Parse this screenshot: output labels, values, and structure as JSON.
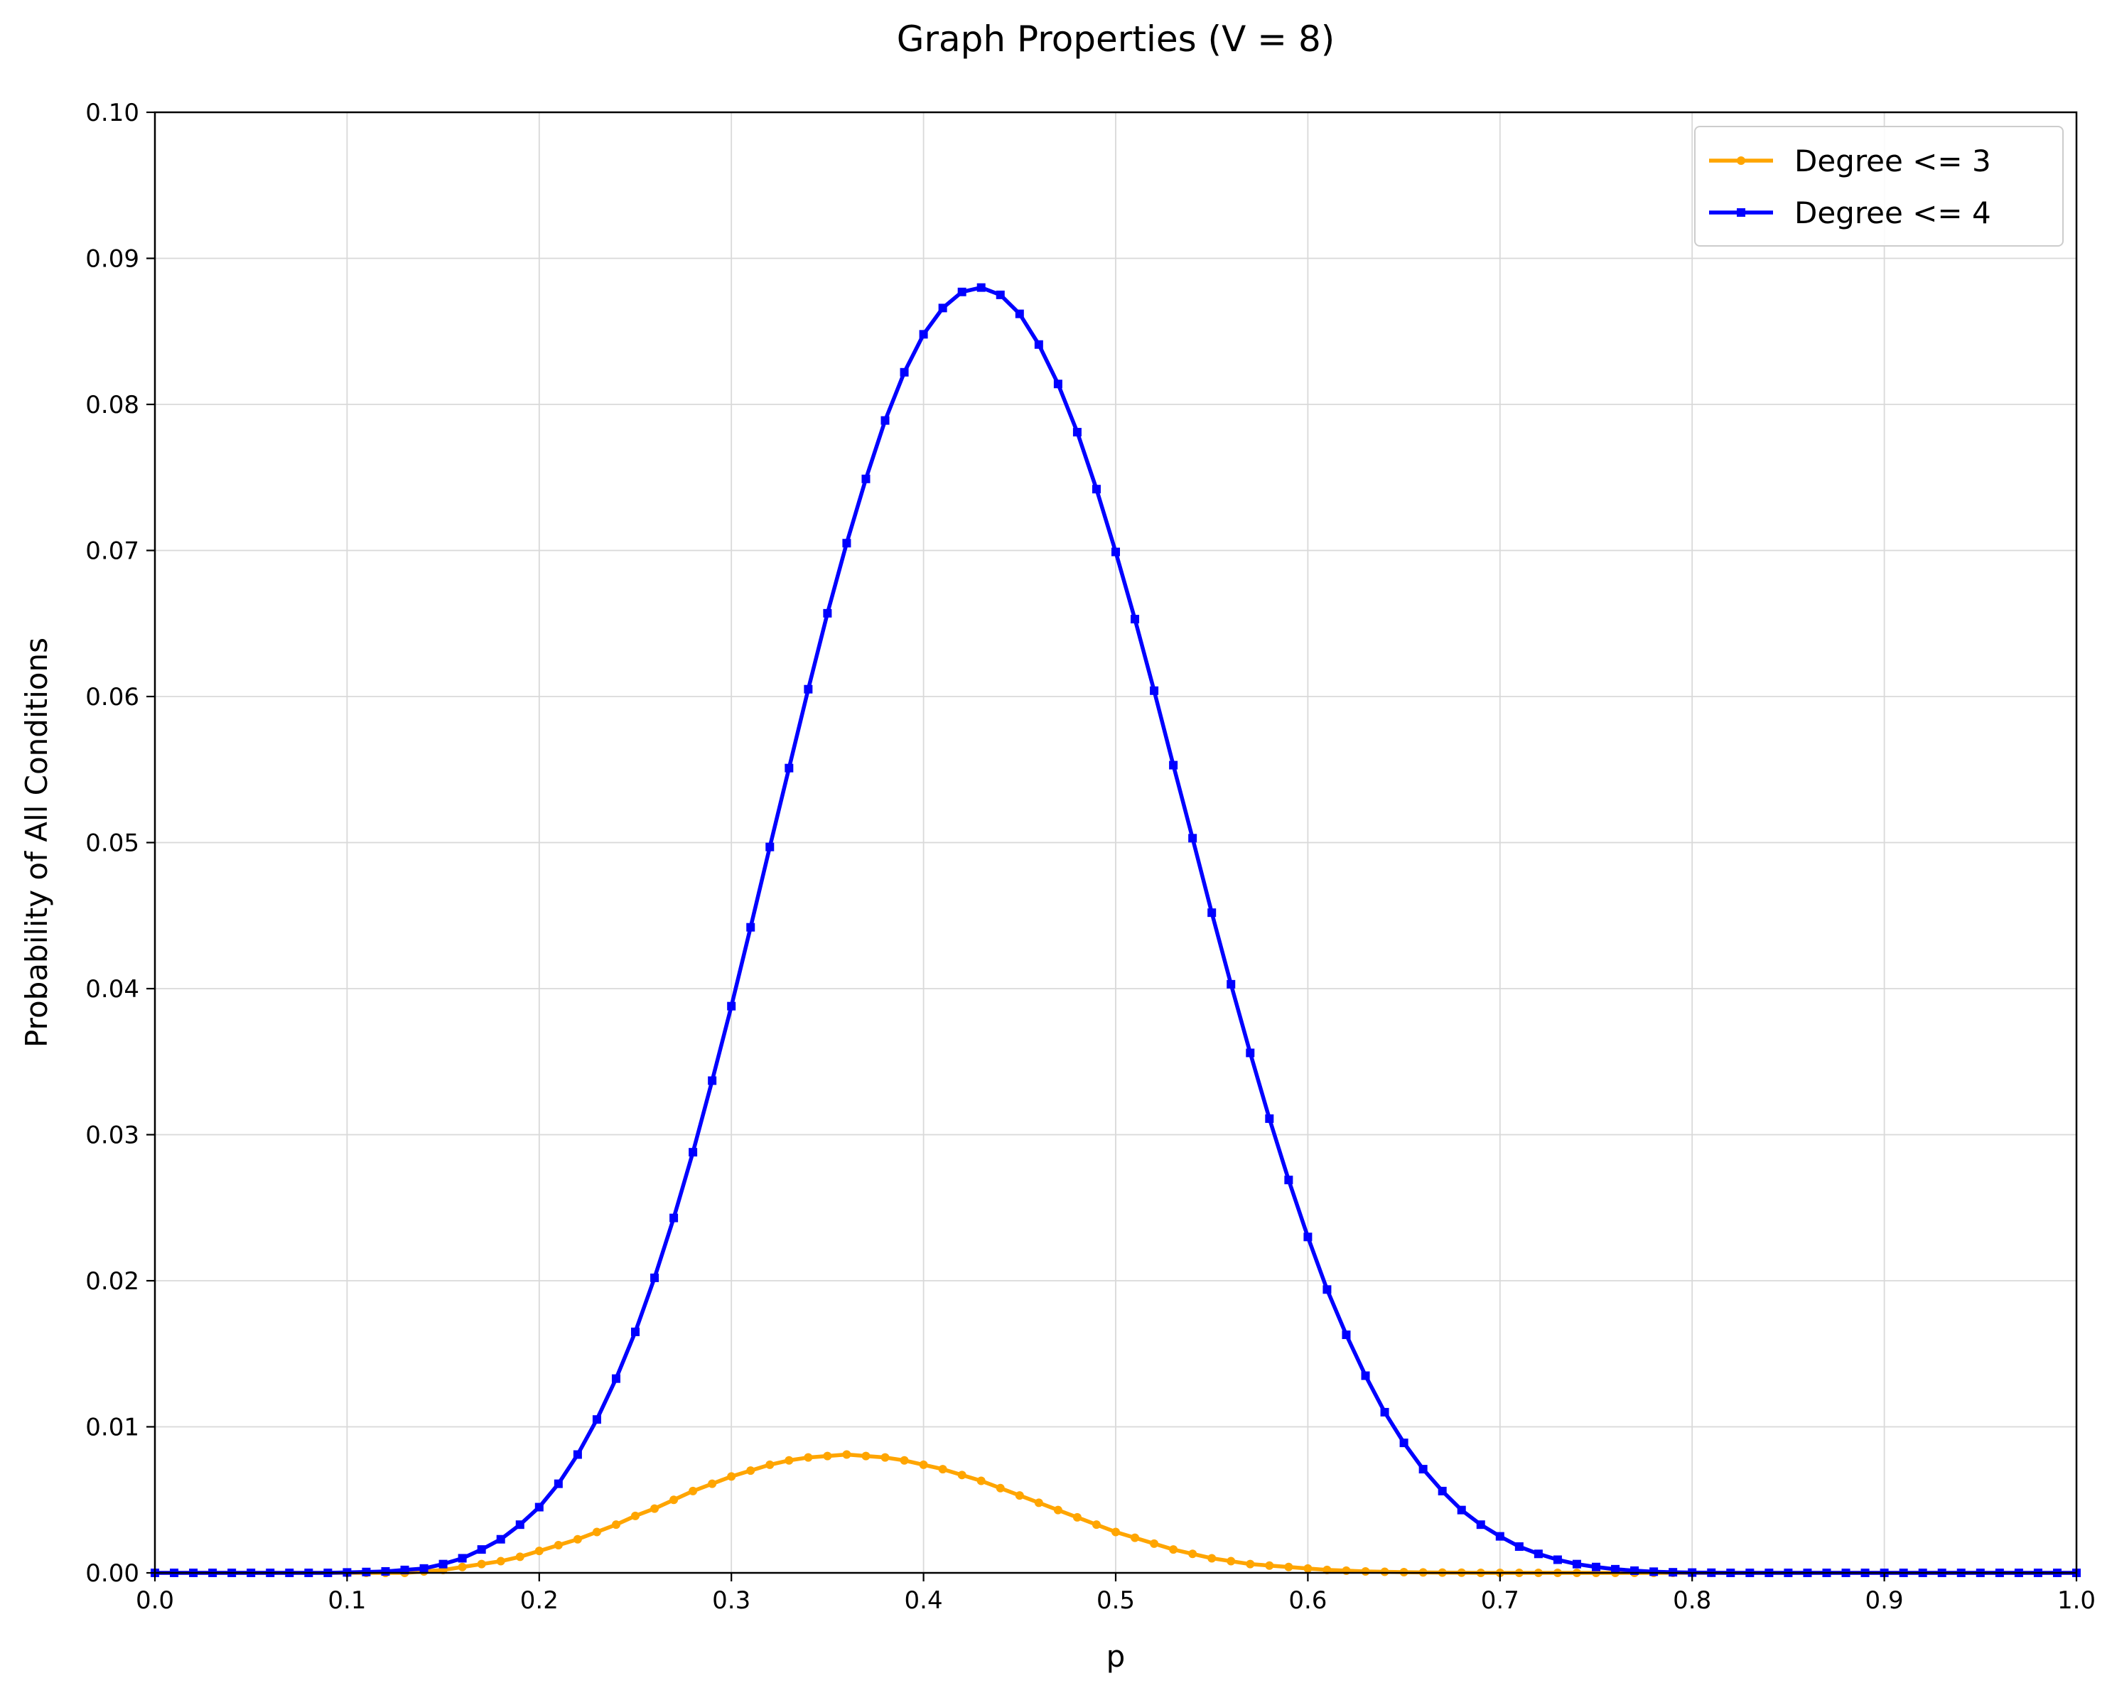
{
  "chart_data": {
    "type": "line",
    "title": "Graph Properties (V = 8)",
    "xlabel": "p",
    "ylabel": "Probability of All Conditions",
    "xlim": [
      0,
      1
    ],
    "ylim": [
      0,
      0.1
    ],
    "xticks": [
      "0.0",
      "0.1",
      "0.2",
      "0.3",
      "0.4",
      "0.5",
      "0.6",
      "0.7",
      "0.8",
      "0.9",
      "1.0"
    ],
    "yticks": [
      "0.00",
      "0.01",
      "0.02",
      "0.03",
      "0.04",
      "0.05",
      "0.06",
      "0.07",
      "0.08",
      "0.09",
      "0.10"
    ],
    "grid": true,
    "legend_position": "top-right",
    "x": [
      0.0,
      0.01,
      0.02,
      0.03,
      0.04,
      0.05,
      0.06,
      0.07,
      0.08,
      0.09,
      0.1,
      0.11,
      0.12,
      0.13,
      0.14,
      0.15,
      0.16,
      0.17,
      0.18,
      0.19,
      0.2,
      0.21,
      0.22,
      0.23,
      0.24,
      0.25,
      0.26,
      0.27,
      0.28,
      0.29,
      0.3,
      0.31,
      0.32,
      0.33,
      0.34,
      0.35,
      0.36,
      0.37,
      0.38,
      0.39,
      0.4,
      0.41,
      0.42,
      0.43,
      0.44,
      0.45,
      0.46,
      0.47,
      0.48,
      0.49,
      0.5,
      0.51,
      0.52,
      0.53,
      0.54,
      0.55,
      0.56,
      0.57,
      0.58,
      0.59,
      0.6,
      0.61,
      0.62,
      0.63,
      0.64,
      0.65,
      0.66,
      0.67,
      0.68,
      0.69,
      0.7,
      0.71,
      0.72,
      0.73,
      0.74,
      0.75,
      0.76,
      0.77,
      0.78,
      0.79,
      0.8,
      0.81,
      0.82,
      0.83,
      0.84,
      0.85,
      0.86,
      0.87,
      0.88,
      0.89,
      0.9,
      0.91,
      0.92,
      0.93,
      0.94,
      0.95,
      0.96,
      0.97,
      0.98,
      0.99,
      1.0
    ],
    "series": [
      {
        "name": "Degree <= 3",
        "color": "#FFA500",
        "marker": "circle",
        "values": [
          0,
          0,
          0,
          0,
          0,
          0,
          0,
          0,
          0,
          0,
          0,
          0,
          0,
          0,
          0.0001,
          0.0002,
          0.0004,
          0.0006,
          0.0008,
          0.0011,
          0.0015,
          0.0019,
          0.0023,
          0.0028,
          0.0033,
          0.0039,
          0.0044,
          0.005,
          0.0056,
          0.0061,
          0.0066,
          0.007,
          0.0074,
          0.0077,
          0.0079,
          0.008,
          0.0081,
          0.008,
          0.0079,
          0.0077,
          0.0074,
          0.0071,
          0.0067,
          0.0063,
          0.0058,
          0.0053,
          0.0048,
          0.0043,
          0.0038,
          0.0033,
          0.0028,
          0.0024,
          0.002,
          0.0016,
          0.0013,
          0.001,
          0.0008,
          0.0006,
          0.0005,
          0.0004,
          0.0003,
          0.0002,
          0.00015,
          0.0001,
          7e-05,
          5e-05,
          3e-05,
          2e-05,
          1e-05,
          0,
          0,
          0,
          0,
          0,
          0,
          0,
          0,
          0,
          0,
          0,
          0,
          0,
          0,
          0,
          0,
          0,
          0,
          0,
          0,
          0,
          0,
          0,
          0,
          0,
          0,
          0,
          0,
          0,
          0,
          0,
          0
        ]
      },
      {
        "name": "Degree <= 4",
        "color": "#0000FF",
        "marker": "square",
        "values": [
          0,
          0,
          0,
          0,
          0,
          0,
          0,
          0,
          0,
          0,
          3e-05,
          6e-05,
          0.0001,
          0.0002,
          0.0003,
          0.0006,
          0.001,
          0.0016,
          0.0023,
          0.0033,
          0.0045,
          0.0061,
          0.0081,
          0.0105,
          0.0133,
          0.0165,
          0.0202,
          0.0243,
          0.0288,
          0.0337,
          0.0388,
          0.0442,
          0.0497,
          0.0551,
          0.0605,
          0.0657,
          0.0705,
          0.0749,
          0.0789,
          0.0822,
          0.0848,
          0.0866,
          0.0877,
          0.088,
          0.0875,
          0.0862,
          0.0841,
          0.0814,
          0.0781,
          0.0742,
          0.0699,
          0.0653,
          0.0604,
          0.0553,
          0.0503,
          0.0452,
          0.0403,
          0.0356,
          0.0311,
          0.0269,
          0.023,
          0.0194,
          0.0163,
          0.0135,
          0.011,
          0.0089,
          0.0071,
          0.0056,
          0.0043,
          0.0033,
          0.0025,
          0.0018,
          0.0013,
          0.0009,
          0.0006,
          0.0004,
          0.00025,
          0.00015,
          8e-05,
          4e-05,
          2e-05,
          1e-05,
          0,
          0,
          0,
          0,
          0,
          0,
          0,
          0,
          0,
          0,
          0,
          0,
          0,
          0,
          0,
          0,
          0,
          0,
          0
        ]
      }
    ]
  }
}
